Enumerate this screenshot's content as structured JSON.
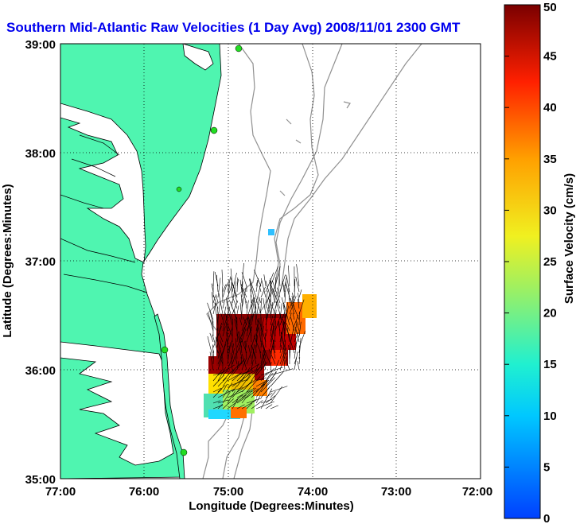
{
  "map": {
    "title": "Southern Mid-Atlantic Raw Velocities (1 Day Avg) 2008/11/01 2300 GMT",
    "xlabel": "Longitude (Degrees:Minutes)",
    "ylabel": "Latitude (Degrees:Minutes)",
    "x_ticks": [
      "77:00",
      "76:00",
      "75:00",
      "74:00",
      "73:00",
      "72:00"
    ],
    "y_ticks": [
      "39:00",
      "38:00",
      "37:00",
      "36:00",
      "35:00"
    ],
    "colorbar": {
      "label": "Surface Velocity (cm/s)",
      "ticks": [
        "50",
        "45",
        "40",
        "35",
        "30",
        "25",
        "20",
        "15",
        "10",
        "5",
        "0"
      ],
      "min": 0,
      "max": 50
    },
    "colors": {
      "land": "#4ff5b0",
      "title": "#0000ee",
      "coastline": "#000000",
      "bathymetry": "#909090",
      "station": "#22dd22"
    }
  }
}
